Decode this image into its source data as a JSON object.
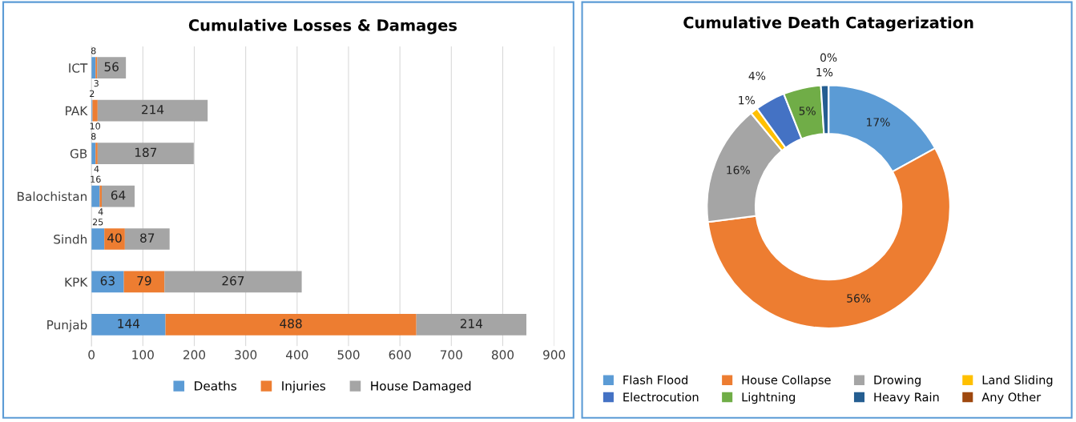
{
  "chart_data": [
    {
      "type": "bar",
      "title": "Cumulative Losses & Damages",
      "orientation": "horizontal",
      "stacked": true,
      "categories": [
        "ICT",
        "PAK",
        "GB",
        "Balochistan",
        "Sindh",
        "KPK",
        "Punjab"
      ],
      "series": [
        {
          "name": "Deaths",
          "color": "#5b9bd5",
          "values": [
            8,
            2,
            8,
            16,
            25,
            63,
            144
          ]
        },
        {
          "name": "Injuries",
          "color": "#ed7d31",
          "values": [
            3,
            10,
            4,
            4,
            40,
            79,
            488
          ]
        },
        {
          "name": "House Damaged",
          "color": "#a5a5a5",
          "values": [
            56,
            214,
            187,
            64,
            87,
            267,
            214
          ]
        }
      ],
      "xlim": [
        0,
        900
      ],
      "xticks": [
        0,
        100,
        200,
        300,
        400,
        500,
        600,
        700,
        800,
        900
      ],
      "grid": "x",
      "legend": "bottom",
      "data_labels": true
    },
    {
      "type": "donut",
      "title": "Cumulative Death Catagerization",
      "categories": [
        "Flash Flood",
        "House Collapse",
        "Drowing",
        "Land Sliding",
        "Electrocution",
        "Lightning",
        "Heavy Rain",
        "Any Other"
      ],
      "values": [
        17,
        56,
        16,
        1,
        4,
        5,
        1,
        0
      ],
      "value_labels": [
        "17%",
        "56%",
        "16%",
        "1%",
        "4%",
        "5%",
        "1%",
        "0%"
      ],
      "colors": [
        "#5b9bd5",
        "#ed7d31",
        "#a5a5a5",
        "#ffc000",
        "#4472c4",
        "#70ad47",
        "#255e91",
        "#9e480e"
      ],
      "legend": "bottom"
    }
  ]
}
